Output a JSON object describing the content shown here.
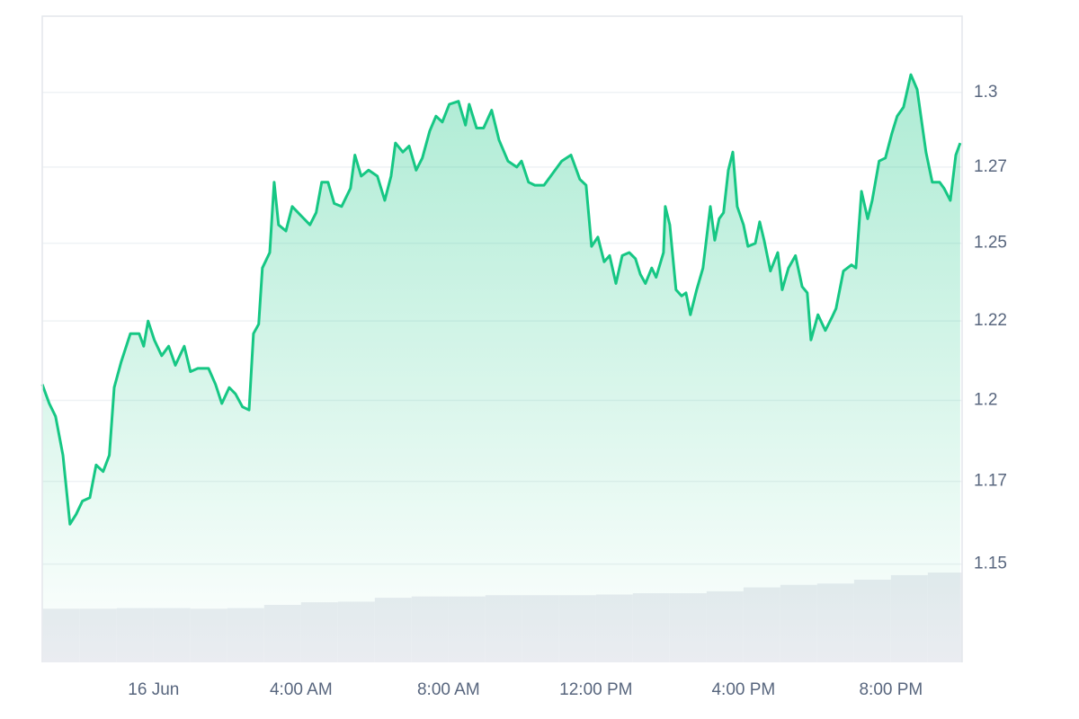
{
  "chart_data": {
    "type": "area-line",
    "log_scale": true,
    "color": "#16c784",
    "grid": true,
    "xlim": [
      -3.02,
      21.93
    ],
    "xticks": [
      {
        "value": 0,
        "label": "16 Jun"
      },
      {
        "value": 4,
        "label": "4:00 AM"
      },
      {
        "value": 8,
        "label": "8:00 AM"
      },
      {
        "value": 12,
        "label": "12:00 PM"
      },
      {
        "value": 16,
        "label": "4:00 PM"
      },
      {
        "value": 20,
        "label": "8:00 PM"
      }
    ],
    "ylim": [
      1.121,
      1.326
    ],
    "yticks": [
      1.15,
      {
        "value": 1.175,
        "label": "1.17"
      },
      1.2,
      {
        "value": 1.225,
        "label": "1.22"
      },
      1.25,
      {
        "value": 1.275,
        "label": "1.27"
      },
      1.3
    ],
    "x": [
      -3.02,
      -2.83,
      -2.66,
      -2.46,
      -2.27,
      -2.1,
      -1.93,
      -1.73,
      -1.56,
      -1.37,
      -1.2,
      -1.07,
      -0.88,
      -0.63,
      -0.39,
      -0.27,
      -0.15,
      0.02,
      0.22,
      0.41,
      0.59,
      0.83,
      1.0,
      1.2,
      1.49,
      1.68,
      1.85,
      2.05,
      2.22,
      2.41,
      2.59,
      2.71,
      2.85,
      2.95,
      3.15,
      3.27,
      3.39,
      3.59,
      3.76,
      4.0,
      4.24,
      4.41,
      4.56,
      4.73,
      4.9,
      5.1,
      5.34,
      5.46,
      5.63,
      5.83,
      6.07,
      6.27,
      6.44,
      6.56,
      6.76,
      6.93,
      7.12,
      7.29,
      7.49,
      7.66,
      7.83,
      8.02,
      8.27,
      8.46,
      8.56,
      8.76,
      8.95,
      9.17,
      9.37,
      9.61,
      9.85,
      9.98,
      10.17,
      10.34,
      10.59,
      10.83,
      11.07,
      11.32,
      11.56,
      11.73,
      11.88,
      12.05,
      12.22,
      12.37,
      12.54,
      12.71,
      12.9,
      13.07,
      13.2,
      13.34,
      13.51,
      13.63,
      13.83,
      13.88,
      14.0,
      14.17,
      14.32,
      14.44,
      14.56,
      14.73,
      14.9,
      15.1,
      15.22,
      15.34,
      15.46,
      15.59,
      15.71,
      15.83,
      16.0,
      16.12,
      16.32,
      16.44,
      16.56,
      16.73,
      16.93,
      17.05,
      17.22,
      17.41,
      17.59,
      17.73,
      17.83,
      18.02,
      18.22,
      18.39,
      18.51,
      18.71,
      18.93,
      19.05,
      19.2,
      19.37,
      19.49,
      19.68,
      19.85,
      20.02,
      20.17,
      20.34,
      20.54,
      20.71,
      20.95,
      21.12,
      21.32,
      21.44,
      21.61,
      21.76,
      21.88
    ],
    "values": [
      1.205,
      1.199,
      1.195,
      1.183,
      1.162,
      1.165,
      1.169,
      1.17,
      1.18,
      1.178,
      1.183,
      1.204,
      1.212,
      1.221,
      1.221,
      1.217,
      1.225,
      1.219,
      1.214,
      1.217,
      1.211,
      1.217,
      1.209,
      1.21,
      1.21,
      1.205,
      1.199,
      1.204,
      1.202,
      1.198,
      1.197,
      1.221,
      1.224,
      1.242,
      1.247,
      1.27,
      1.256,
      1.254,
      1.262,
      1.259,
      1.256,
      1.26,
      1.27,
      1.27,
      1.263,
      1.262,
      1.268,
      1.279,
      1.272,
      1.274,
      1.272,
      1.264,
      1.272,
      1.283,
      1.28,
      1.282,
      1.274,
      1.278,
      1.287,
      1.292,
      1.29,
      1.296,
      1.297,
      1.289,
      1.296,
      1.288,
      1.288,
      1.294,
      1.284,
      1.277,
      1.275,
      1.277,
      1.27,
      1.269,
      1.269,
      1.273,
      1.277,
      1.279,
      1.271,
      1.269,
      1.249,
      1.252,
      1.244,
      1.246,
      1.237,
      1.246,
      1.247,
      1.245,
      1.24,
      1.237,
      1.242,
      1.239,
      1.247,
      1.262,
      1.256,
      1.235,
      1.233,
      1.234,
      1.227,
      1.235,
      1.242,
      1.262,
      1.251,
      1.258,
      1.26,
      1.274,
      1.28,
      1.262,
      1.256,
      1.249,
      1.25,
      1.257,
      1.251,
      1.241,
      1.247,
      1.235,
      1.242,
      1.246,
      1.236,
      1.234,
      1.219,
      1.227,
      1.222,
      1.226,
      1.229,
      1.241,
      1.243,
      1.242,
      1.267,
      1.258,
      1.264,
      1.277,
      1.278,
      1.286,
      1.292,
      1.295,
      1.306,
      1.301,
      1.28,
      1.27,
      1.27,
      1.268,
      1.264,
      1.279,
      1.283
    ],
    "y2lim": [
      0,
      100
    ],
    "volume": {
      "color": "#eaecf1",
      "axis": "y2",
      "x": [
        -3,
        -2,
        -1,
        0,
        1,
        2,
        3,
        4,
        5,
        6,
        7,
        8,
        9,
        10,
        11,
        12,
        13,
        14,
        15,
        16,
        17,
        18,
        19,
        20,
        21
      ],
      "values": [
        8.3,
        8.3,
        8.4,
        8.4,
        8.3,
        8.4,
        8.9,
        9.3,
        9.4,
        10.0,
        10.2,
        10.2,
        10.4,
        10.4,
        10.4,
        10.5,
        10.7,
        10.7,
        11.0,
        11.6,
        12.0,
        12.2,
        12.8,
        13.5,
        13.9
      ]
    }
  }
}
